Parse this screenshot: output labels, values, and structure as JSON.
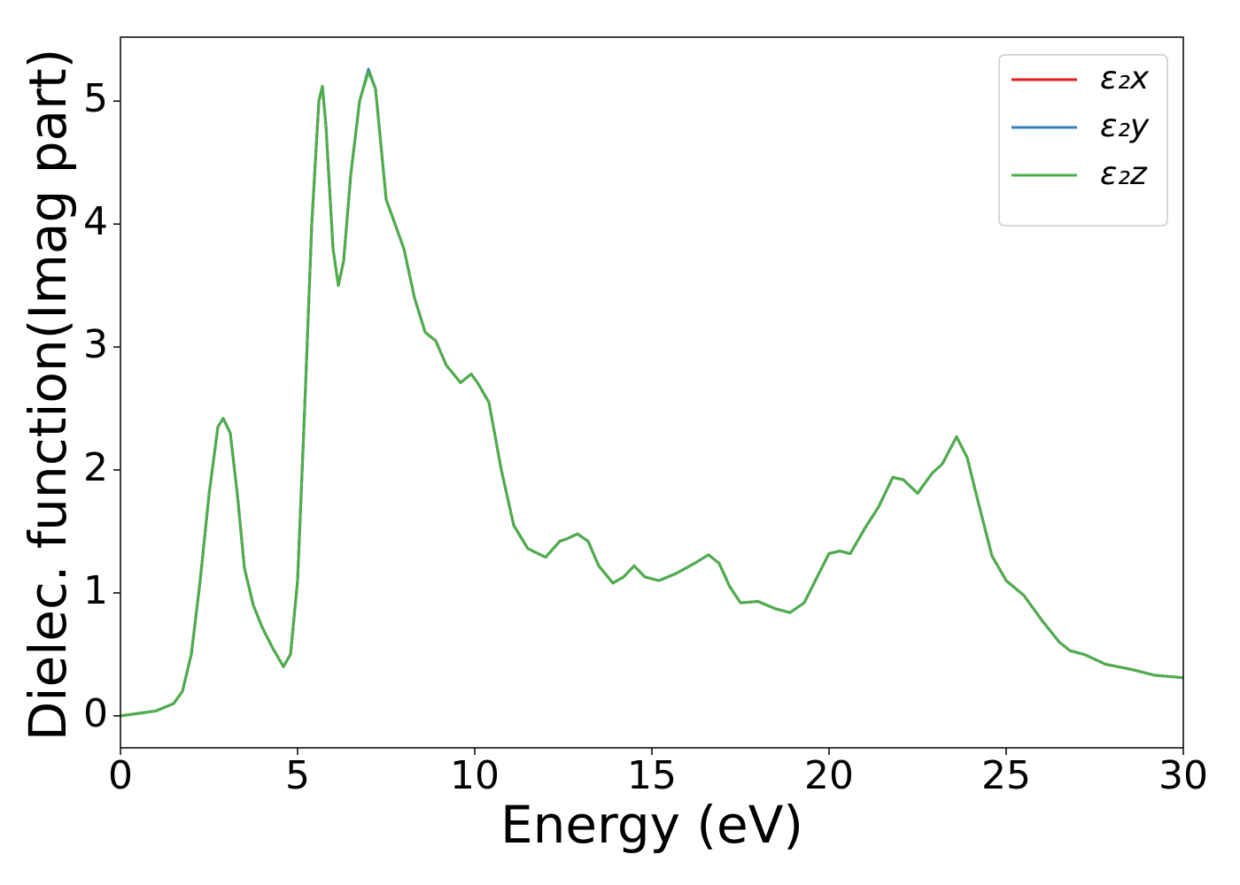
{
  "chart_data": {
    "type": "line",
    "xlabel": "Energy (eV)",
    "ylabel": "Dielec. function(Imag part)",
    "x": [
      0,
      0.5,
      1,
      1.5,
      1.75,
      2,
      2.25,
      2.5,
      2.75,
      2.9,
      3.1,
      3.3,
      3.5,
      3.75,
      4,
      4.3,
      4.6,
      4.8,
      5,
      5.2,
      5.4,
      5.6,
      5.7,
      5.8,
      6,
      6.15,
      6.3,
      6.5,
      6.75,
      7,
      7.2,
      7.5,
      7.75,
      8,
      8.3,
      8.6,
      8.9,
      9.2,
      9.6,
      9.9,
      10.1,
      10.4,
      10.75,
      11.1,
      11.5,
      12,
      12.4,
      12.6,
      12.9,
      13.2,
      13.5,
      13.9,
      14.2,
      14.5,
      14.8,
      15.2,
      15.7,
      16.2,
      16.6,
      16.9,
      17.2,
      17.5,
      18,
      18.5,
      18.9,
      19.3,
      19.7,
      20,
      20.3,
      20.6,
      21,
      21.4,
      21.8,
      22.1,
      22.5,
      22.9,
      23.2,
      23.6,
      23.9,
      24.2,
      24.6,
      25,
      25.5,
      26,
      26.5,
      26.8,
      27.2,
      27.8,
      28.5,
      29.2,
      30
    ],
    "series": [
      {
        "name": "ε₂x",
        "color": "#e41a1c",
        "values": [
          0,
          0.02,
          0.04,
          0.1,
          0.2,
          0.5,
          1.1,
          1.8,
          2.35,
          2.42,
          2.3,
          1.8,
          1.2,
          0.9,
          0.72,
          0.55,
          0.4,
          0.5,
          1.1,
          2.5,
          4.0,
          5.0,
          5.12,
          4.8,
          3.8,
          3.5,
          3.7,
          4.4,
          5.0,
          5.25,
          5.1,
          4.2,
          4.0,
          3.8,
          3.4,
          3.12,
          3.05,
          2.85,
          2.71,
          2.78,
          2.7,
          2.55,
          2.0,
          1.55,
          1.36,
          1.29,
          1.42,
          1.44,
          1.48,
          1.42,
          1.22,
          1.08,
          1.13,
          1.22,
          1.13,
          1.1,
          1.16,
          1.24,
          1.31,
          1.24,
          1.05,
          0.92,
          0.93,
          0.87,
          0.84,
          0.92,
          1.15,
          1.32,
          1.34,
          1.32,
          1.52,
          1.7,
          1.94,
          1.92,
          1.81,
          1.97,
          2.05,
          2.27,
          2.1,
          1.75,
          1.3,
          1.1,
          0.98,
          0.78,
          0.6,
          0.53,
          0.5,
          0.42,
          0.38,
          0.33,
          0.31
        ]
      },
      {
        "name": "ε₂y",
        "color": "#377eb8",
        "values": [
          0,
          0.02,
          0.04,
          0.1,
          0.2,
          0.5,
          1.1,
          1.8,
          2.35,
          2.42,
          2.3,
          1.8,
          1.2,
          0.9,
          0.72,
          0.55,
          0.4,
          0.5,
          1.1,
          2.5,
          4.0,
          5.0,
          5.12,
          4.8,
          3.8,
          3.5,
          3.7,
          4.4,
          5.0,
          5.26,
          5.1,
          4.2,
          4.0,
          3.8,
          3.4,
          3.12,
          3.05,
          2.85,
          2.71,
          2.78,
          2.7,
          2.55,
          2.0,
          1.55,
          1.36,
          1.29,
          1.42,
          1.44,
          1.48,
          1.42,
          1.22,
          1.08,
          1.13,
          1.22,
          1.13,
          1.1,
          1.16,
          1.24,
          1.31,
          1.24,
          1.05,
          0.92,
          0.93,
          0.87,
          0.84,
          0.92,
          1.15,
          1.32,
          1.34,
          1.32,
          1.52,
          1.7,
          1.94,
          1.92,
          1.81,
          1.97,
          2.05,
          2.27,
          2.1,
          1.75,
          1.3,
          1.1,
          0.98,
          0.78,
          0.6,
          0.53,
          0.5,
          0.42,
          0.38,
          0.33,
          0.31
        ]
      },
      {
        "name": "ε₂z",
        "color": "#4daf4a",
        "values": [
          0,
          0.02,
          0.04,
          0.1,
          0.2,
          0.5,
          1.1,
          1.8,
          2.35,
          2.42,
          2.3,
          1.8,
          1.2,
          0.9,
          0.72,
          0.55,
          0.4,
          0.5,
          1.1,
          2.5,
          4.0,
          5.0,
          5.12,
          4.8,
          3.8,
          3.5,
          3.7,
          4.4,
          5.0,
          5.24,
          5.1,
          4.2,
          4.0,
          3.8,
          3.4,
          3.12,
          3.05,
          2.85,
          2.71,
          2.78,
          2.7,
          2.55,
          2.0,
          1.55,
          1.36,
          1.29,
          1.42,
          1.44,
          1.48,
          1.42,
          1.22,
          1.08,
          1.13,
          1.22,
          1.13,
          1.1,
          1.16,
          1.24,
          1.31,
          1.24,
          1.05,
          0.92,
          0.93,
          0.87,
          0.84,
          0.92,
          1.15,
          1.32,
          1.34,
          1.32,
          1.52,
          1.7,
          1.94,
          1.92,
          1.81,
          1.97,
          2.05,
          2.27,
          2.1,
          1.75,
          1.3,
          1.1,
          0.98,
          0.78,
          0.6,
          0.53,
          0.5,
          0.42,
          0.38,
          0.33,
          0.31
        ]
      }
    ],
    "xlim": [
      0,
      30
    ],
    "xticks": [
      0,
      5,
      10,
      15,
      20,
      25,
      30
    ],
    "ylim": [
      -0.26,
      5.52
    ],
    "yticks": [
      0,
      1,
      2,
      3,
      4,
      5
    ],
    "grid": false,
    "legend": "upper right"
  }
}
